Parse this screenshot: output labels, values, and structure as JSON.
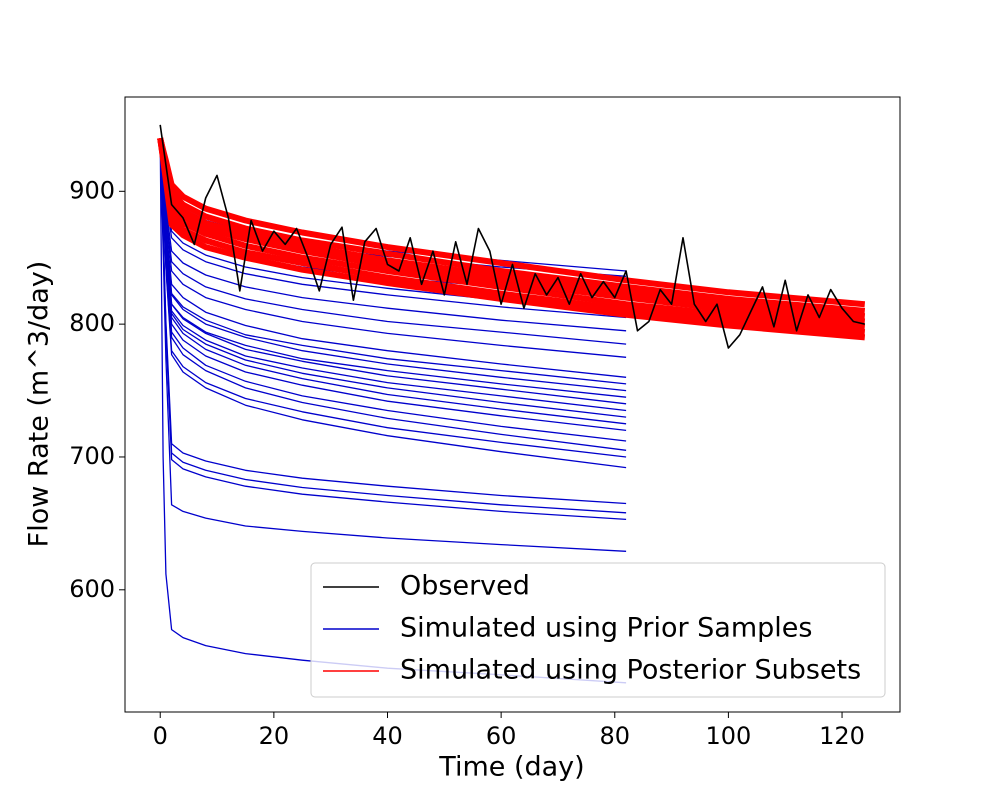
{
  "chart_data": {
    "type": "line",
    "xlabel": "Time (day)",
    "ylabel": "Flow Rate (m^3/day)",
    "xlim": [
      -6.2,
      130.2
    ],
    "ylim": [
      508,
      971
    ],
    "xticks": [
      0,
      20,
      40,
      60,
      80,
      100,
      120
    ],
    "yticks": [
      600,
      700,
      800,
      900
    ],
    "legend": "lower right",
    "series": [
      {
        "name": "Observed",
        "color": "#000000",
        "x": [
          0,
          2,
          4,
          6,
          8,
          10,
          12,
          14,
          16,
          18,
          20,
          22,
          24,
          26,
          28,
          30,
          32,
          34,
          36,
          38,
          40,
          42,
          44,
          46,
          48,
          50,
          52,
          54,
          56,
          58,
          60,
          62,
          64,
          66,
          68,
          70,
          72,
          74,
          76,
          78,
          80,
          82,
          84,
          86,
          88,
          90,
          92,
          94,
          96,
          98,
          100,
          102,
          104,
          106,
          108,
          110,
          112,
          114,
          116,
          118,
          120,
          122,
          124
        ],
        "values": [
          950,
          890,
          880,
          860,
          895,
          912,
          880,
          825,
          878,
          855,
          870,
          860,
          872,
          850,
          825,
          860,
          873,
          818,
          862,
          872,
          845,
          840,
          865,
          830,
          855,
          822,
          862,
          830,
          872,
          855,
          815,
          845,
          812,
          838,
          822,
          835,
          815,
          838,
          820,
          832,
          820,
          840,
          795,
          802,
          826,
          815,
          865,
          815,
          802,
          815,
          782,
          792,
          810,
          828,
          798,
          833,
          795,
          822,
          805,
          826,
          812,
          802,
          800
        ]
      },
      {
        "name": "Simulated using Prior Samples",
        "color": "#0000cc",
        "x": [
          0,
          0.5,
          1,
          2,
          4,
          8,
          15,
          25,
          40,
          60,
          82
        ],
        "curves": [
          [
            940,
            926,
            913,
            895,
            887,
            878,
            870,
            863,
            855,
            848,
            840
          ],
          [
            940,
            924,
            909,
            888,
            880,
            872,
            865,
            858,
            851,
            843,
            836
          ],
          [
            940,
            920,
            901,
            875,
            867,
            858,
            850,
            843,
            835,
            828,
            820
          ],
          [
            940,
            919,
            898,
            870,
            861,
            852,
            843,
            835,
            827,
            818,
            810
          ],
          [
            940,
            917,
            895,
            865,
            856,
            847,
            838,
            830,
            822,
            813,
            805
          ],
          [
            940,
            915,
            889,
            855,
            846,
            837,
            828,
            820,
            812,
            803,
            795
          ],
          [
            940,
            912,
            884,
            847,
            838,
            828,
            819,
            811,
            802,
            794,
            785
          ],
          [
            940,
            910,
            880,
            840,
            830,
            820,
            811,
            802,
            793,
            784,
            775
          ],
          [
            940,
            907,
            874,
            830,
            820,
            809,
            799,
            789,
            780,
            770,
            760
          ],
          [
            940,
            905,
            870,
            823,
            813,
            803,
            792,
            784,
            774,
            765,
            755
          ],
          [
            940,
            905,
            869,
            822,
            811,
            800,
            790,
            780,
            770,
            760,
            750
          ],
          [
            940,
            903,
            865,
            815,
            805,
            794,
            784,
            774,
            765,
            755,
            745
          ],
          [
            940,
            903,
            865,
            815,
            804,
            793,
            781,
            772,
            761,
            751,
            740
          ],
          [
            940,
            901,
            862,
            810,
            799,
            788,
            776,
            767,
            756,
            746,
            735
          ],
          [
            940,
            900,
            861,
            808,
            796,
            785,
            773,
            763,
            752,
            741,
            730
          ],
          [
            940,
            900,
            859,
            805,
            793,
            781,
            769,
            759,
            747,
            736,
            725
          ],
          [
            940,
            898,
            856,
            800,
            788,
            776,
            764,
            754,
            742,
            731,
            720
          ],
          [
            940,
            896,
            852,
            794,
            782,
            769,
            757,
            746,
            735,
            723,
            712
          ],
          [
            940,
            895,
            850,
            790,
            777,
            765,
            752,
            741,
            729,
            717,
            705
          ],
          [
            940,
            892,
            844,
            780,
            768,
            756,
            744,
            734,
            722,
            711,
            700
          ],
          [
            940,
            891,
            842,
            777,
            764,
            752,
            739,
            728,
            716,
            704,
            692
          ],
          [
            940,
            871,
            802,
            710,
            703,
            697,
            690,
            684,
            678,
            671,
            665
          ],
          [
            940,
            869,
            798,
            703,
            696,
            690,
            683,
            677,
            671,
            664,
            658
          ],
          [
            940,
            867,
            795,
            698,
            691,
            685,
            678,
            672,
            666,
            659,
            653
          ],
          [
            940,
            857,
            774,
            664,
            659,
            654,
            648,
            644,
            639,
            634,
            629
          ],
          [
            940,
            700,
            612,
            570,
            564,
            558,
            552,
            547,
            541,
            536,
            530
          ]
        ]
      },
      {
        "name": "Simulated using Posterior Subsets",
        "color": "#ff0000",
        "x": [
          0,
          0.5,
          1,
          2,
          4,
          8,
          15,
          25,
          40,
          60,
          82,
          100,
          124
        ],
        "curves": [
          [
            940,
            924,
            908,
            875,
            867,
            858,
            850,
            841,
            831,
            819,
            807,
            799,
            790
          ],
          [
            940,
            925,
            910,
            880,
            871,
            863,
            854,
            846,
            835,
            823,
            811,
            803,
            794
          ],
          [
            940,
            926,
            913,
            885,
            876,
            868,
            859,
            850,
            840,
            828,
            815,
            807,
            798
          ],
          [
            940,
            928,
            915,
            890,
            881,
            872,
            864,
            855,
            844,
            832,
            820,
            811,
            802
          ],
          [
            940,
            929,
            917,
            894,
            885,
            876,
            868,
            859,
            848,
            836,
            824,
            815,
            806
          ],
          [
            940,
            930,
            920,
            899,
            890,
            881,
            872,
            863,
            853,
            840,
            828,
            819,
            810
          ],
          [
            940,
            931,
            923,
            905,
            896,
            887,
            878,
            869,
            858,
            846,
            833,
            824,
            815
          ]
        ]
      }
    ]
  }
}
